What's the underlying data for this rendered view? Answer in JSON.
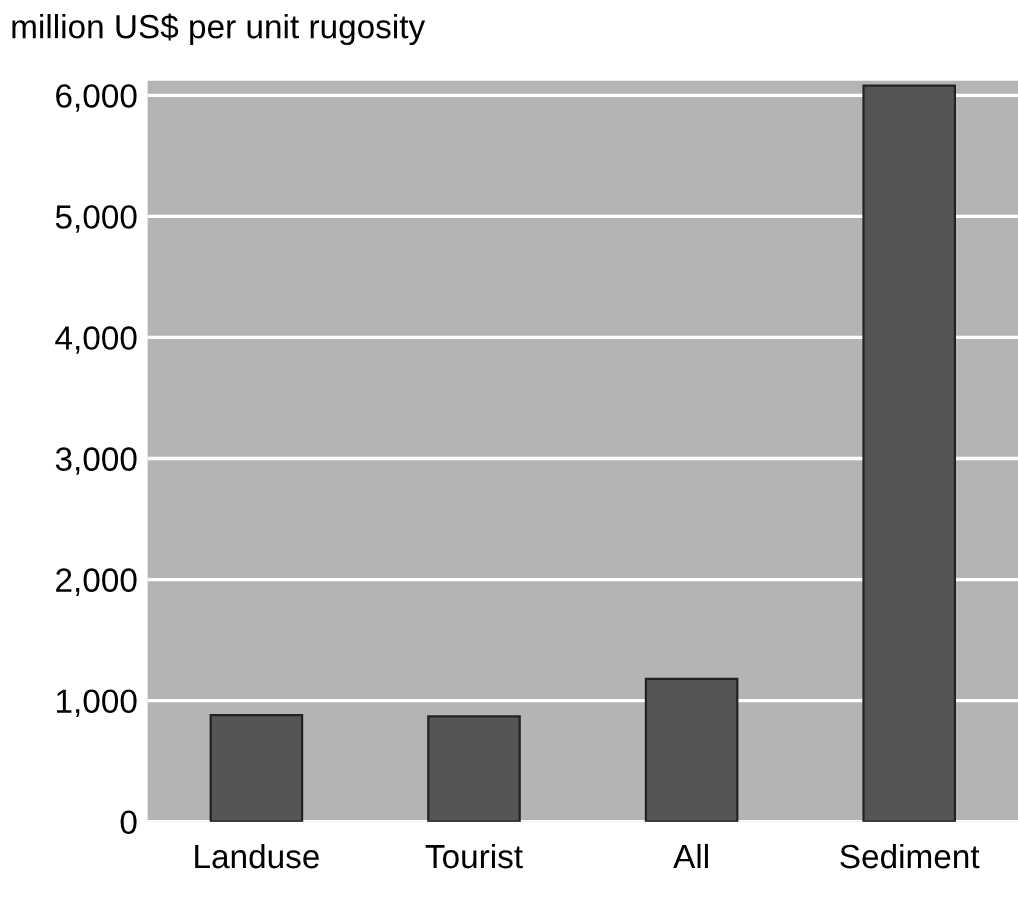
{
  "chart_data": {
    "type": "bar",
    "ylabel": "million US$ per unit rugosity",
    "categories": [
      "Landuse",
      "Tourist",
      "All",
      "Sediment"
    ],
    "values": [
      880,
      870,
      1180,
      6080
    ],
    "color": "#555555",
    "ylim": [
      0,
      6120
    ],
    "yticks": [
      0,
      {
        "value": 1000,
        "label": "1,000"
      },
      {
        "value": 2000,
        "label": "2,000"
      },
      {
        "value": 3000,
        "label": "3,000"
      },
      {
        "value": 4000,
        "label": "4,000"
      },
      {
        "value": 5000,
        "label": "5,000"
      },
      {
        "value": 6000,
        "label": "6,000"
      }
    ],
    "grid": "y",
    "legend": false
  }
}
